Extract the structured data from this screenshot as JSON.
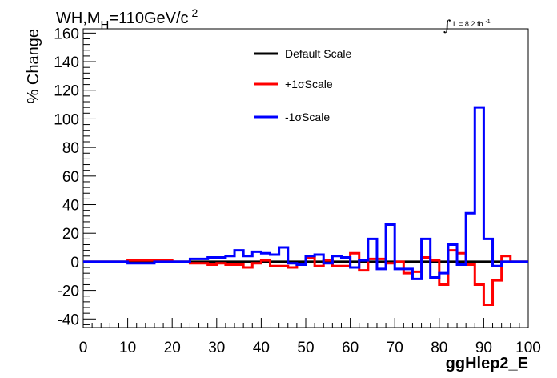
{
  "chart_data": {
    "type": "line",
    "title_main": "WH,M",
    "title_sub": "H",
    "title_rest": "=110GeV/c",
    "title_sup": "2",
    "lumi_label": "L = 8.2 fb",
    "lumi_sup": "-1",
    "xlabel": "ggHlep2_E",
    "ylabel": "% Change",
    "xlim": [
      0,
      100
    ],
    "ylim": [
      -46,
      163
    ],
    "x_ticks": [
      0,
      10,
      20,
      30,
      40,
      50,
      60,
      70,
      80,
      90,
      100
    ],
    "y_ticks": [
      -40,
      -20,
      0,
      20,
      40,
      60,
      80,
      100,
      120,
      140,
      160
    ],
    "bin_edges": [
      0,
      2,
      4,
      6,
      8,
      10,
      12,
      14,
      16,
      18,
      20,
      22,
      24,
      26,
      28,
      30,
      32,
      34,
      36,
      38,
      40,
      42,
      44,
      46,
      48,
      50,
      52,
      54,
      56,
      58,
      60,
      62,
      64,
      66,
      68,
      70,
      72,
      74,
      76,
      78,
      80,
      82,
      84,
      86,
      88,
      90,
      92,
      94,
      96,
      98,
      100
    ],
    "legend_position": "top-center",
    "series": [
      {
        "name": "Default Scale",
        "color": "#000000",
        "values": [
          0,
          0,
          0,
          0,
          0,
          0,
          0,
          0,
          0,
          0,
          0,
          0,
          0,
          0,
          0,
          0,
          0,
          0,
          0,
          0,
          0,
          0,
          0,
          0,
          0,
          0,
          0,
          0,
          0,
          0,
          0,
          0,
          0,
          0,
          0,
          0,
          0,
          0,
          0,
          0,
          0,
          0,
          0,
          0,
          0,
          0,
          0,
          0,
          0,
          0
        ]
      },
      {
        "name": "+1σScale",
        "color": "#ff0000",
        "values": [
          0,
          0,
          0,
          0,
          0,
          1,
          1,
          1,
          1,
          1,
          0,
          0,
          -1,
          -1,
          -2,
          -1,
          -2,
          -2,
          -4,
          -1,
          1,
          -3,
          -3,
          -4,
          -2,
          3,
          -3,
          1,
          -3,
          -3,
          6,
          -6,
          2,
          2,
          -1,
          0,
          -8,
          -7,
          3,
          1,
          -16,
          8,
          6,
          -2,
          -16,
          -30,
          -13,
          4,
          0,
          0
        ]
      },
      {
        "name": "-1σScale",
        "color": "#0000ff",
        "values": [
          0,
          0,
          0,
          0,
          0,
          -1,
          -1,
          -1,
          0,
          0,
          0,
          0,
          2,
          2,
          3,
          3,
          4,
          8,
          4,
          7,
          6,
          5,
          10,
          -1,
          -2,
          4,
          5,
          -1,
          4,
          3,
          -4,
          1,
          16,
          -5,
          26,
          -5,
          -5,
          -12,
          16,
          -11,
          -8,
          12,
          -2,
          34,
          108,
          16,
          -3,
          0,
          0,
          0
        ]
      }
    ]
  }
}
